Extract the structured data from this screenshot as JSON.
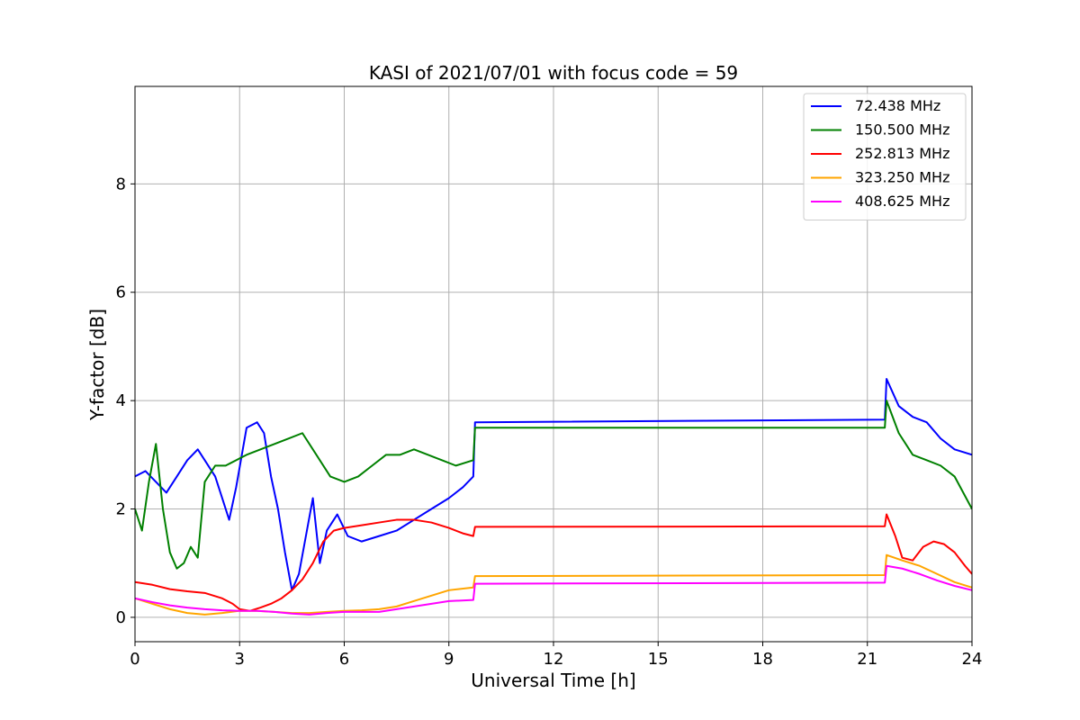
{
  "chart_data": {
    "type": "line",
    "title": "KASI of 2021/07/01 with focus code = 59",
    "xlabel": "Universal Time [h]",
    "ylabel": "Y-factor [dB]",
    "xlim": [
      0,
      24
    ],
    "ylim": [
      -0.45,
      9.8
    ],
    "xticks": [
      0,
      3,
      6,
      9,
      12,
      15,
      18,
      21,
      24
    ],
    "yticks": [
      0,
      2,
      4,
      6,
      8
    ],
    "grid": true,
    "legend_position": "top-right",
    "series": [
      {
        "name": " 72.438 MHz",
        "color": "#0000ff",
        "points": [
          [
            0,
            2.6
          ],
          [
            0.3,
            2.7
          ],
          [
            0.6,
            2.5
          ],
          [
            0.9,
            2.3
          ],
          [
            1.2,
            2.6
          ],
          [
            1.5,
            2.9
          ],
          [
            1.8,
            3.1
          ],
          [
            2.0,
            2.9
          ],
          [
            2.3,
            2.6
          ],
          [
            2.5,
            2.2
          ],
          [
            2.7,
            1.8
          ],
          [
            2.9,
            2.4
          ],
          [
            3.2,
            3.5
          ],
          [
            3.5,
            3.6
          ],
          [
            3.7,
            3.4
          ],
          [
            3.9,
            2.6
          ],
          [
            4.1,
            2.0
          ],
          [
            4.3,
            1.2
          ],
          [
            4.5,
            0.5
          ],
          [
            4.7,
            0.8
          ],
          [
            4.9,
            1.5
          ],
          [
            5.1,
            2.2
          ],
          [
            5.3,
            1.0
          ],
          [
            5.5,
            1.6
          ],
          [
            5.8,
            1.9
          ],
          [
            6.1,
            1.5
          ],
          [
            6.5,
            1.4
          ],
          [
            7.0,
            1.5
          ],
          [
            7.5,
            1.6
          ],
          [
            8.0,
            1.8
          ],
          [
            8.5,
            2.0
          ],
          [
            9.0,
            2.2
          ],
          [
            9.4,
            2.4
          ],
          [
            9.7,
            2.6
          ],
          [
            9.75,
            3.6
          ],
          [
            21.5,
            3.65
          ],
          [
            21.55,
            4.4
          ],
          [
            21.9,
            3.9
          ],
          [
            22.3,
            3.7
          ],
          [
            22.7,
            3.6
          ],
          [
            23.1,
            3.3
          ],
          [
            23.5,
            3.1
          ],
          [
            24,
            3.0
          ]
        ]
      },
      {
        "name": "150.500 MHz",
        "color": "#008000",
        "points": [
          [
            0,
            2.0
          ],
          [
            0.2,
            1.6
          ],
          [
            0.4,
            2.5
          ],
          [
            0.6,
            3.2
          ],
          [
            0.8,
            2.0
          ],
          [
            1.0,
            1.2
          ],
          [
            1.2,
            0.9
          ],
          [
            1.4,
            1.0
          ],
          [
            1.6,
            1.3
          ],
          [
            1.8,
            1.1
          ],
          [
            2.0,
            2.5
          ],
          [
            2.3,
            2.8
          ],
          [
            2.6,
            2.8
          ],
          [
            2.9,
            2.9
          ],
          [
            3.2,
            3.0
          ],
          [
            3.6,
            3.1
          ],
          [
            4.0,
            3.2
          ],
          [
            4.4,
            3.3
          ],
          [
            4.8,
            3.4
          ],
          [
            5.2,
            3.0
          ],
          [
            5.6,
            2.6
          ],
          [
            6.0,
            2.5
          ],
          [
            6.4,
            2.6
          ],
          [
            6.8,
            2.8
          ],
          [
            7.2,
            3.0
          ],
          [
            7.6,
            3.0
          ],
          [
            8.0,
            3.1
          ],
          [
            8.4,
            3.0
          ],
          [
            8.8,
            2.9
          ],
          [
            9.2,
            2.8
          ],
          [
            9.7,
            2.9
          ],
          [
            9.75,
            3.5
          ],
          [
            21.5,
            3.5
          ],
          [
            21.55,
            4.0
          ],
          [
            21.9,
            3.4
          ],
          [
            22.3,
            3.0
          ],
          [
            22.7,
            2.9
          ],
          [
            23.1,
            2.8
          ],
          [
            23.5,
            2.6
          ],
          [
            24,
            2.0
          ]
        ]
      },
      {
        "name": "252.813 MHz",
        "color": "#ff0000",
        "points": [
          [
            0,
            0.65
          ],
          [
            0.5,
            0.6
          ],
          [
            1.0,
            0.52
          ],
          [
            1.5,
            0.48
          ],
          [
            2.0,
            0.45
          ],
          [
            2.5,
            0.35
          ],
          [
            2.8,
            0.25
          ],
          [
            3.0,
            0.15
          ],
          [
            3.3,
            0.12
          ],
          [
            3.6,
            0.18
          ],
          [
            3.9,
            0.25
          ],
          [
            4.2,
            0.35
          ],
          [
            4.5,
            0.5
          ],
          [
            4.8,
            0.7
          ],
          [
            5.1,
            1.0
          ],
          [
            5.4,
            1.4
          ],
          [
            5.7,
            1.6
          ],
          [
            6.0,
            1.65
          ],
          [
            6.5,
            1.7
          ],
          [
            7.0,
            1.75
          ],
          [
            7.5,
            1.8
          ],
          [
            8.0,
            1.8
          ],
          [
            8.5,
            1.75
          ],
          [
            9.0,
            1.65
          ],
          [
            9.4,
            1.55
          ],
          [
            9.7,
            1.5
          ],
          [
            9.75,
            1.67
          ],
          [
            21.5,
            1.68
          ],
          [
            21.55,
            1.9
          ],
          [
            21.8,
            1.5
          ],
          [
            22.0,
            1.1
          ],
          [
            22.3,
            1.05
          ],
          [
            22.6,
            1.3
          ],
          [
            22.9,
            1.4
          ],
          [
            23.2,
            1.35
          ],
          [
            23.5,
            1.2
          ],
          [
            23.8,
            0.95
          ],
          [
            24,
            0.8
          ]
        ]
      },
      {
        "name": "323.250 MHz",
        "color": "#ffa500",
        "points": [
          [
            0,
            0.35
          ],
          [
            0.5,
            0.25
          ],
          [
            1.0,
            0.15
          ],
          [
            1.5,
            0.08
          ],
          [
            2.0,
            0.05
          ],
          [
            2.5,
            0.08
          ],
          [
            3.0,
            0.12
          ],
          [
            3.5,
            0.12
          ],
          [
            4.0,
            0.1
          ],
          [
            4.5,
            0.08
          ],
          [
            5.0,
            0.08
          ],
          [
            5.5,
            0.1
          ],
          [
            6.0,
            0.12
          ],
          [
            6.5,
            0.13
          ],
          [
            7.0,
            0.15
          ],
          [
            7.5,
            0.2
          ],
          [
            8.0,
            0.3
          ],
          [
            8.5,
            0.4
          ],
          [
            9.0,
            0.5
          ],
          [
            9.7,
            0.55
          ],
          [
            9.75,
            0.76
          ],
          [
            21.5,
            0.78
          ],
          [
            21.55,
            1.15
          ],
          [
            22.0,
            1.05
          ],
          [
            22.5,
            0.95
          ],
          [
            23.0,
            0.8
          ],
          [
            23.5,
            0.65
          ],
          [
            24,
            0.55
          ]
        ]
      },
      {
        "name": "408.625 MHz",
        "color": "#ff00ff",
        "points": [
          [
            0,
            0.35
          ],
          [
            0.5,
            0.28
          ],
          [
            1.0,
            0.22
          ],
          [
            1.5,
            0.18
          ],
          [
            2.0,
            0.15
          ],
          [
            2.5,
            0.13
          ],
          [
            3.0,
            0.12
          ],
          [
            3.5,
            0.12
          ],
          [
            4.0,
            0.1
          ],
          [
            4.5,
            0.07
          ],
          [
            5.0,
            0.05
          ],
          [
            5.5,
            0.08
          ],
          [
            6.0,
            0.1
          ],
          [
            6.5,
            0.1
          ],
          [
            7.0,
            0.1
          ],
          [
            7.5,
            0.15
          ],
          [
            8.0,
            0.2
          ],
          [
            8.5,
            0.25
          ],
          [
            9.0,
            0.3
          ],
          [
            9.7,
            0.32
          ],
          [
            9.75,
            0.62
          ],
          [
            21.5,
            0.64
          ],
          [
            21.55,
            0.95
          ],
          [
            22.0,
            0.9
          ],
          [
            22.5,
            0.8
          ],
          [
            23.0,
            0.68
          ],
          [
            23.5,
            0.58
          ],
          [
            24,
            0.5
          ]
        ]
      }
    ]
  }
}
